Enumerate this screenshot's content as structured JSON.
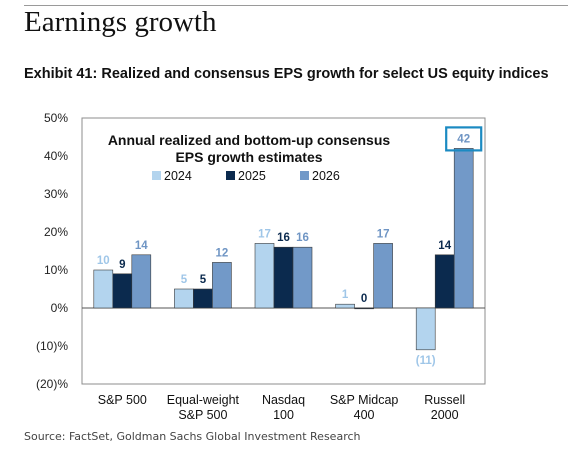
{
  "page": {
    "section_title": "Earnings growth",
    "exhibit_title": "Exhibit 41: Realized and consensus EPS growth for select US equity indices",
    "source": "Source: FactSet, Goldman Sachs Global Investment Research"
  },
  "colors": {
    "2024": "#b3d4ee",
    "2025": "#0b2a4e",
    "2026": "#7299c8",
    "highlight": "#1b8ac2"
  },
  "chart_data": {
    "type": "bar",
    "title": "Annual realized and bottom-up consensus",
    "subtitle": "EPS growth estimates",
    "legend_position": "top",
    "categories": [
      [
        "S&P 500"
      ],
      [
        "Equal-weight",
        "S&P 500"
      ],
      [
        "Nasdaq",
        "100"
      ],
      [
        "S&P Midcap",
        "400"
      ],
      [
        "Russell",
        "2000"
      ]
    ],
    "series": [
      {
        "name": "2024",
        "values": [
          10,
          5,
          17,
          1,
          -11
        ],
        "labels": [
          "10",
          "5",
          "17",
          "1",
          "(11)"
        ]
      },
      {
        "name": "2025",
        "values": [
          9,
          5,
          16,
          0,
          14
        ],
        "labels": [
          "9",
          "5",
          "16",
          "0",
          "14"
        ]
      },
      {
        "name": "2026",
        "values": [
          14,
          12,
          16,
          17,
          42
        ],
        "labels": [
          "14",
          "12",
          "16",
          "17",
          "42"
        ]
      }
    ],
    "y_ticks": [
      50,
      40,
      30,
      20,
      10,
      0,
      -10,
      -20
    ],
    "y_tick_labels": [
      "50%",
      "40%",
      "30%",
      "20%",
      "10%",
      "0%",
      "(10)%",
      "(20)%"
    ],
    "ylim": [
      -20,
      50
    ],
    "grid": false,
    "highlighted": {
      "category_index": 4,
      "series_index": 2
    }
  }
}
